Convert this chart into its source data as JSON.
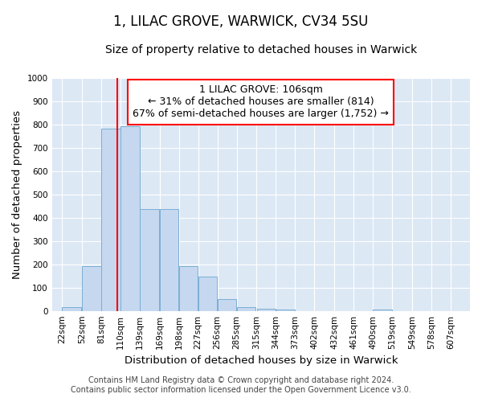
{
  "title": "1, LILAC GROVE, WARWICK, CV34 5SU",
  "subtitle": "Size of property relative to detached houses in Warwick",
  "xlabel": "Distribution of detached houses by size in Warwick",
  "ylabel": "Number of detached properties",
  "annotation_line1": "1 LILAC GROVE: 106sqm",
  "annotation_line2": "← 31% of detached houses are smaller (814)",
  "annotation_line3": "67% of semi-detached houses are larger (1,752) →",
  "footer_line1": "Contains HM Land Registry data © Crown copyright and database right 2024.",
  "footer_line2": "Contains public sector information licensed under the Open Government Licence v3.0.",
  "property_size": 106,
  "bar_left_edges": [
    22,
    52,
    81,
    110,
    139,
    169,
    198,
    227,
    256,
    285,
    315,
    344,
    373,
    402,
    432,
    461,
    490,
    519,
    549,
    578
  ],
  "bar_widths": [
    29,
    29,
    29,
    29,
    29,
    29,
    29,
    29,
    29,
    29,
    29,
    29,
    29,
    29,
    29,
    29,
    29,
    29,
    29,
    29
  ],
  "bar_heights": [
    15,
    193,
    783,
    790,
    437,
    437,
    192,
    147,
    50,
    15,
    10,
    5,
    0,
    0,
    0,
    0,
    5,
    0,
    0,
    0
  ],
  "bar_color": "#c5d8f0",
  "bar_edge_color": "#7baed4",
  "red_line_x": 106,
  "ylim": [
    0,
    1000
  ],
  "yticks": [
    0,
    100,
    200,
    300,
    400,
    500,
    600,
    700,
    800,
    900,
    1000
  ],
  "x_tick_labels": [
    "22sqm",
    "52sqm",
    "81sqm",
    "110sqm",
    "139sqm",
    "169sqm",
    "198sqm",
    "227sqm",
    "256sqm",
    "285sqm",
    "315sqm",
    "344sqm",
    "373sqm",
    "402sqm",
    "432sqm",
    "461sqm",
    "490sqm",
    "519sqm",
    "549sqm",
    "578sqm",
    "607sqm"
  ],
  "x_tick_positions": [
    22,
    52,
    81,
    110,
    139,
    169,
    198,
    227,
    256,
    285,
    315,
    344,
    373,
    402,
    432,
    461,
    490,
    519,
    549,
    578,
    607
  ],
  "fig_bg_color": "#ffffff",
  "axes_bg_color": "#dde8f5",
  "grid_color": "#ffffff",
  "title_fontsize": 12,
  "subtitle_fontsize": 10,
  "axis_label_fontsize": 9.5,
  "tick_fontsize": 7.5,
  "annotation_fontsize": 9,
  "footer_fontsize": 7
}
